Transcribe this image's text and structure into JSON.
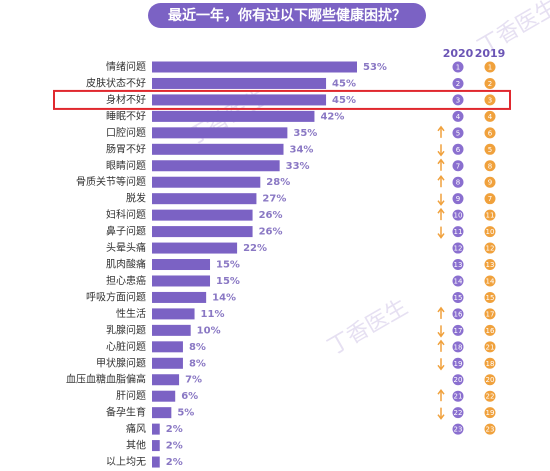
{
  "chart_data": {
    "type": "bar",
    "orientation": "horizontal",
    "title": "最近一年，你有过以下哪些健康困扰？",
    "watermark": "丁香医生",
    "categories": [
      "情绪问题",
      "皮肤状态不好",
      "身材不好",
      "睡眠不好",
      "口腔问题",
      "肠胃不好",
      "眼睛问题",
      "骨质关节等问题",
      "脱发",
      "妇科问题",
      "鼻子问题",
      "头晕头痛",
      "肌肉酸痛",
      "担心患癌",
      "呼吸方面问题",
      "性生活",
      "乳腺问题",
      "心脏问题",
      "甲状腺问题",
      "血压血糖血脂偏高",
      "肝问题",
      "备孕生育",
      "痛风",
      "其他",
      "以上均无"
    ],
    "values": [
      53,
      45,
      45,
      42,
      35,
      34,
      33,
      28,
      27,
      26,
      26,
      22,
      15,
      15,
      14,
      11,
      10,
      8,
      8,
      7,
      6,
      5,
      2,
      2,
      2
    ],
    "value_labels": [
      "53%",
      "45%",
      "45%",
      "42%",
      "35%",
      "34%",
      "33%",
      "28%",
      "27%",
      "26%",
      "26%",
      "22%",
      "15%",
      "15%",
      "14%",
      "11%",
      "10%",
      "8%",
      "8%",
      "7%",
      "6%",
      "5%",
      "2%",
      "2%",
      "2%"
    ],
    "color": "#7b62c4",
    "highlight_row": 2,
    "rank_columns": [
      {
        "name": "2020",
        "color": "#8a6fcf",
        "values": [
          1,
          2,
          3,
          4,
          5,
          6,
          7,
          8,
          9,
          10,
          11,
          12,
          13,
          14,
          15,
          16,
          17,
          18,
          19,
          20,
          21,
          22,
          23,
          null,
          null
        ]
      },
      {
        "name": "2019",
        "color": "#f0a13c",
        "values": [
          1,
          2,
          3,
          4,
          6,
          5,
          8,
          9,
          7,
          11,
          10,
          12,
          13,
          14,
          15,
          17,
          16,
          21,
          18,
          20,
          22,
          19,
          23,
          null,
          null
        ]
      }
    ]
  }
}
